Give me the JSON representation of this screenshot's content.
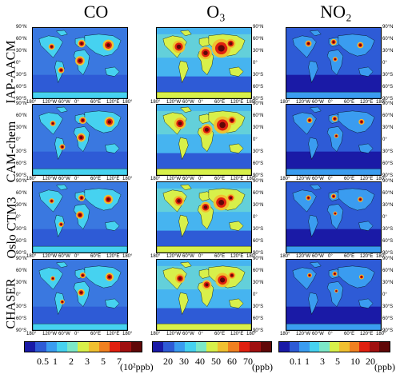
{
  "columns": [
    {
      "key": "co",
      "label": "CO",
      "unit": "(10²ppb)",
      "ticks": [
        "0.5",
        "1",
        "2",
        "3",
        "5",
        "7"
      ]
    },
    {
      "key": "o3",
      "label": "O₃",
      "unit": "(ppb)",
      "ticks": [
        "20",
        "30",
        "40",
        "50",
        "60",
        "70"
      ]
    },
    {
      "key": "no2",
      "label": "NO₂",
      "unit": "(ppb)",
      "ticks": [
        "0.1",
        "1",
        "3",
        "5",
        "10",
        "20"
      ]
    }
  ],
  "rows": [
    "IAP-AACM",
    "CAM-chem",
    "Oslo CTM3",
    "CHASER"
  ],
  "lat_labels": [
    "90°N",
    "60°N",
    "30°N",
    "0°",
    "30°S",
    "60°S",
    "90°S"
  ],
  "lon_labels": [
    "180°",
    "120°W",
    "60°W",
    "0°",
    "60°E",
    "120°E",
    "180°"
  ],
  "colors": {
    "palette": [
      "#1a1aa6",
      "#2e5bd6",
      "#3a9cf0",
      "#46d2f0",
      "#7ce8c8",
      "#d8f04a",
      "#f0c030",
      "#f08020",
      "#e02010",
      "#a01010",
      "#600808"
    ],
    "ocean_co": "#3a78e0",
    "ocean_o3": "#46b4f0",
    "ocean_no2": "#2e5bd6"
  }
}
